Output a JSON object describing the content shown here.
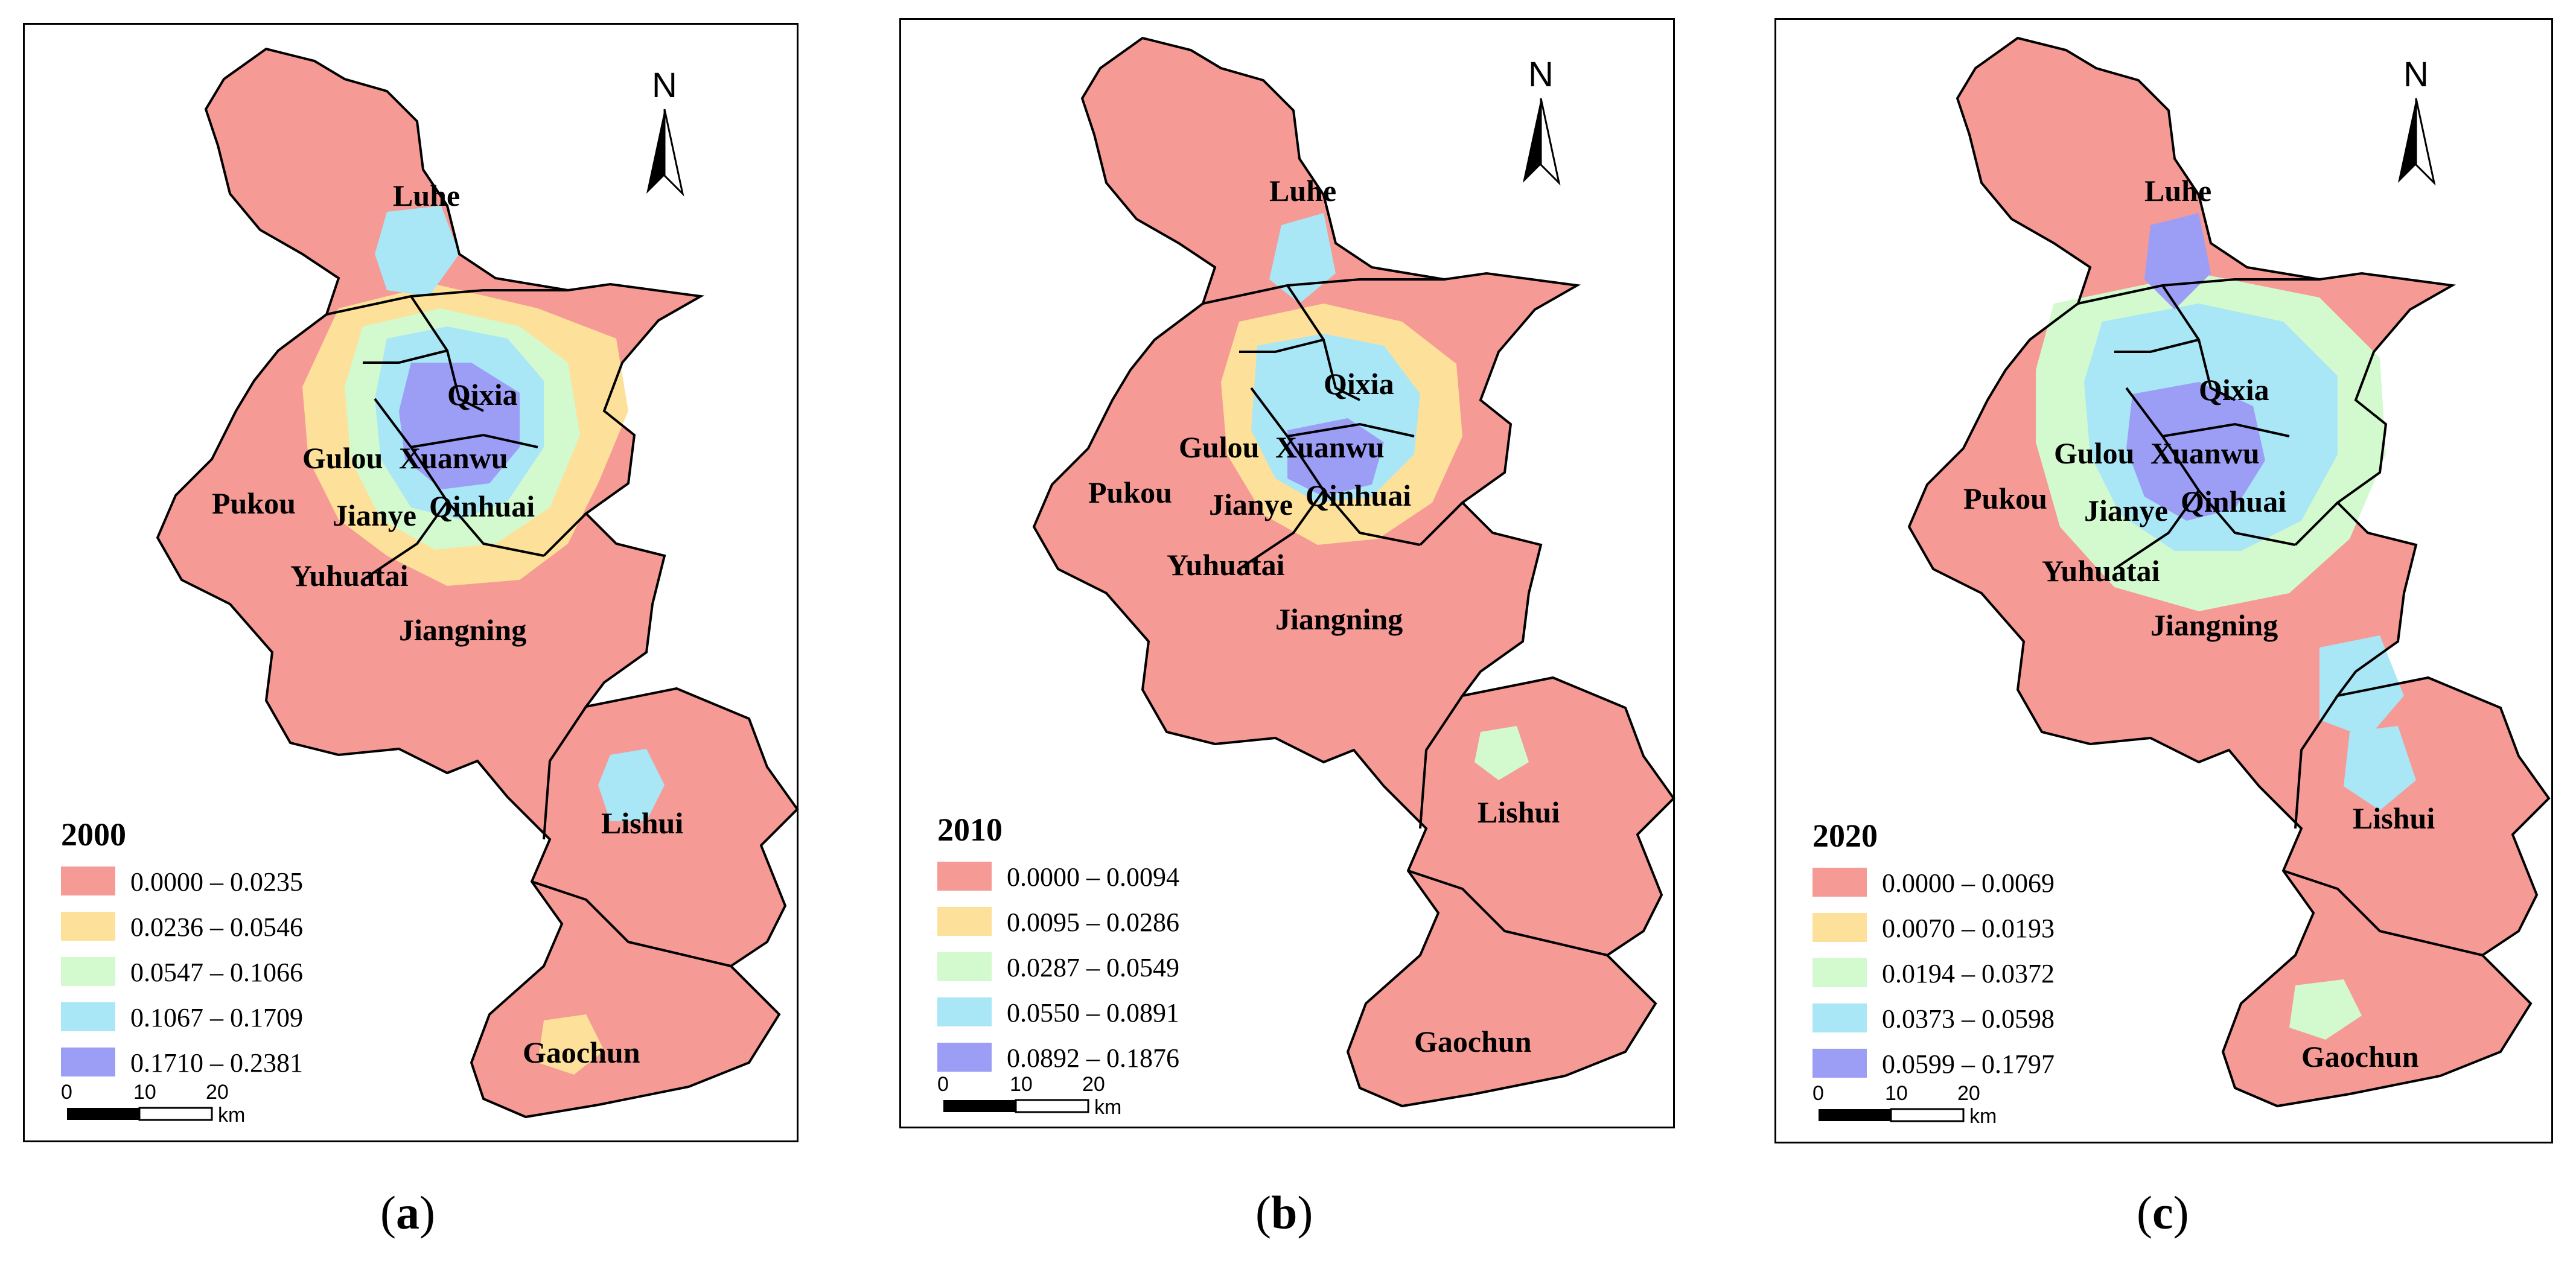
{
  "panels": [
    {
      "caption": "a",
      "year": "2000",
      "legend": [
        "0.0000 – 0.0235",
        "0.0236 – 0.0546",
        "0.0547 – 0.1066",
        "0.1067 – 0.1709",
        "0.1710 – 0.2381"
      ]
    },
    {
      "caption": "b",
      "year": "2010",
      "legend": [
        "0.0000 – 0.0094",
        "0.0095 – 0.0286",
        "0.0287 – 0.0549",
        "0.0550 – 0.0891",
        "0.0892 – 0.1876"
      ]
    },
    {
      "caption": "c",
      "year": "2020",
      "legend": [
        "0.0000 – 0.0069",
        "0.0070 – 0.0193",
        "0.0194 – 0.0372",
        "0.0373 – 0.0598",
        "0.0599 – 0.1797"
      ]
    }
  ],
  "districts": [
    "Luhe",
    "Qixia",
    "Gulou",
    "Xuanwu",
    "Pukou",
    "Jianye",
    "Qinhuai",
    "Yuhuatai",
    "Jiangning",
    "Lishui",
    "Gaochun"
  ],
  "north_label": "N",
  "scale": {
    "ticks": [
      "0",
      "10",
      "20"
    ],
    "unit": "km"
  },
  "class_colors": [
    "#f59a95",
    "#fde19a",
    "#d3f9cf",
    "#a9e6f6",
    "#9c9ef6"
  ]
}
